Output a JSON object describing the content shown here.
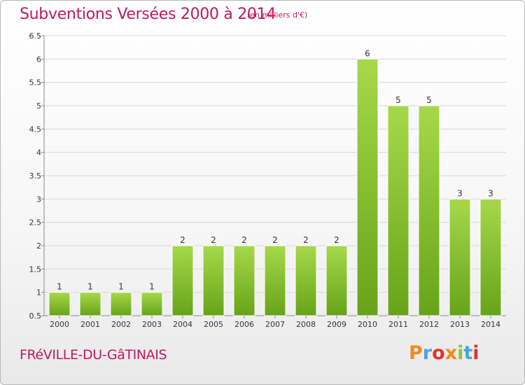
{
  "header": {
    "title": "Subventions Versées 2000 à 2014",
    "subtitle": "(en milliers d'€)"
  },
  "footer": {
    "place": "FRéVILLE-DU-GâTINAIS",
    "brand": "Proxiti",
    "brand_colors": [
      "#f08a1e",
      "#4aa3df",
      "#e0322b",
      "#f08a1e",
      "#8cc63f",
      "#4aa3df",
      "#e0322b"
    ]
  },
  "colors": {
    "title": "#c0185f",
    "bar_light": "#a6d94a",
    "bar_dark": "#67a319",
    "grid": "#d6d6d6",
    "axis_text": "#333333"
  },
  "chart_data": {
    "type": "bar",
    "categories": [
      "2000",
      "2001",
      "2002",
      "2003",
      "2004",
      "2005",
      "2006",
      "2007",
      "2008",
      "2009",
      "2010",
      "2011",
      "2012",
      "2013",
      "2014"
    ],
    "values": [
      1,
      1,
      1,
      1,
      2,
      2,
      2,
      2,
      2,
      2,
      6,
      5,
      5,
      3,
      3
    ],
    "ylim": [
      0.5,
      6.5
    ],
    "yticks": [
      "0.5",
      "1",
      "1.5",
      "2",
      "2.5",
      "3",
      "3.5",
      "4",
      "4.5",
      "5",
      "5.5",
      "6",
      "6.5"
    ],
    "grid": true,
    "title": "Subventions Versées 2000 à 2014",
    "xlabel": "",
    "ylabel": ""
  }
}
